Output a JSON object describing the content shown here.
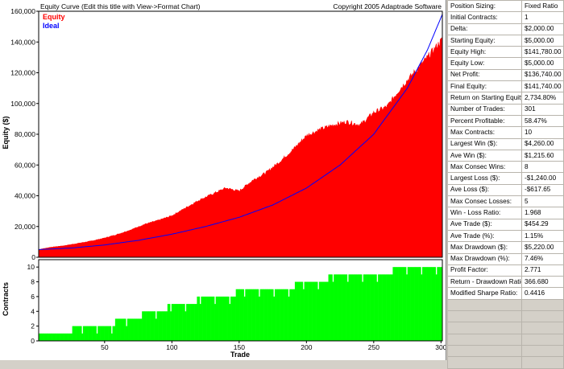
{
  "chart": {
    "title": "Equity Curve (Edit this title with View->Format Chart)",
    "copyright": "Copyright 2005 Adaptrade Software",
    "legend": [
      {
        "name": "Equity",
        "color": "#ff0000"
      },
      {
        "name": "Ideal",
        "color": "#0000ff"
      }
    ],
    "y_label_top": "Equity ($)",
    "y_label_bottom": "Contracts",
    "x_label": "Trade"
  },
  "stats_header": {
    "label": "Position Sizing:",
    "value": "Fixed Ratio"
  },
  "stats": [
    {
      "label": "Initial Contracts:",
      "value": "1"
    },
    {
      "label": "Delta:",
      "value": "$2,000.00"
    },
    {
      "label": "Starting Equity:",
      "value": "$5,000.00"
    },
    {
      "label": "Equity High:",
      "value": "$141,780.00"
    },
    {
      "label": "Equity Low:",
      "value": "$5,000.00"
    },
    {
      "label": "Net Profit:",
      "value": "$136,740.00"
    },
    {
      "label": "Final Equity:",
      "value": "$141,740.00"
    },
    {
      "label": "Return on Starting Equity:",
      "value": "2,734.80%"
    },
    {
      "label": "Number of Trades:",
      "value": "301"
    },
    {
      "label": "Percent Profitable:",
      "value": "58.47%"
    },
    {
      "label": "Max Contracts:",
      "value": "10"
    },
    {
      "label": "Largest Win ($):",
      "value": "$4,260.00"
    },
    {
      "label": "Ave Win ($):",
      "value": "$1,215.60"
    },
    {
      "label": "Max Consec Wins:",
      "value": "8"
    },
    {
      "label": "Largest Loss ($):",
      "value": "-$1,240.00"
    },
    {
      "label": "Ave Loss ($):",
      "value": "-$617.65"
    },
    {
      "label": "Max Consec Losses:",
      "value": "5"
    },
    {
      "label": "Win - Loss Ratio:",
      "value": "1.968"
    },
    {
      "label": "Ave Trade ($):",
      "value": "$454.29"
    },
    {
      "label": "Ave Trade (%):",
      "value": "1.15%"
    },
    {
      "label": "Max Drawdown ($):",
      "value": "$5,220.00"
    },
    {
      "label": "Max Drawdown (%):",
      "value": "7.46%"
    },
    {
      "label": "Profit Factor:",
      "value": "2.771"
    },
    {
      "label": "Return - Drawdown Ratio:",
      "value": "366.680"
    },
    {
      "label": "Modified Sharpe Ratio:",
      "value": "0.4416"
    }
  ],
  "chart_data": [
    {
      "type": "area",
      "title": "Equity Curve (Edit this title with View->Format Chart)",
      "xlabel": "Trade",
      "ylabel": "Equity ($)",
      "xlim": [
        1,
        301
      ],
      "ylim": [
        0,
        160000
      ],
      "y_ticks": [
        0,
        20000,
        40000,
        60000,
        80000,
        100000,
        120000,
        140000,
        160000
      ],
      "y_tick_labels": [
        "0",
        "20,000",
        "40,000",
        "60,000",
        "80,000",
        "100,000",
        "120,000",
        "140,000",
        "160,000"
      ],
      "x_ticks": [
        50,
        100,
        150,
        200,
        250,
        300
      ],
      "legend_position": "top-left",
      "grid": false,
      "series": [
        {
          "name": "Equity",
          "color": "#ff0000",
          "x": [
            1,
            10,
            20,
            30,
            40,
            50,
            60,
            70,
            80,
            90,
            100,
            110,
            120,
            130,
            140,
            150,
            160,
            170,
            180,
            190,
            200,
            210,
            220,
            230,
            240,
            250,
            260,
            270,
            280,
            290,
            301
          ],
          "values": [
            5000,
            6500,
            7500,
            9000,
            10500,
            12500,
            15000,
            18000,
            21500,
            24000,
            27000,
            32000,
            37000,
            41000,
            45000,
            43000,
            50000,
            55000,
            62000,
            70000,
            79000,
            83000,
            86000,
            88000,
            86000,
            94000,
            98000,
            110000,
            120000,
            130000,
            141740
          ]
        },
        {
          "name": "Ideal",
          "color": "#0000ff",
          "x": [
            1,
            25,
            50,
            75,
            100,
            125,
            150,
            175,
            200,
            225,
            250,
            275,
            290,
            301
          ],
          "values": [
            5000,
            6000,
            8000,
            11000,
            15000,
            20000,
            26000,
            34000,
            45000,
            60000,
            80000,
            110000,
            135000,
            158000
          ]
        }
      ]
    },
    {
      "type": "bar",
      "xlabel": "Trade",
      "ylabel": "Contracts",
      "xlim": [
        1,
        301
      ],
      "ylim": [
        0,
        11
      ],
      "y_ticks": [
        0,
        2,
        4,
        6,
        8,
        10
      ],
      "x_ticks": [
        50,
        100,
        150,
        200,
        250,
        300
      ],
      "series": [
        {
          "name": "Contracts",
          "color": "#00ff00",
          "steps": [
            {
              "from": 1,
              "to": 25,
              "value": 1
            },
            {
              "from": 26,
              "to": 57,
              "value": 2
            },
            {
              "from": 58,
              "to": 76,
              "value": 3
            },
            {
              "from": 77,
              "to": 96,
              "value": 4
            },
            {
              "from": 97,
              "to": 118,
              "value": 5
            },
            {
              "from": 119,
              "to": 147,
              "value": 6
            },
            {
              "from": 148,
              "to": 191,
              "value": 7
            },
            {
              "from": 192,
              "to": 216,
              "value": 8
            },
            {
              "from": 217,
              "to": 263,
              "value": 9
            },
            {
              "from": 264,
              "to": 301,
              "value": 10
            }
          ]
        }
      ]
    }
  ]
}
